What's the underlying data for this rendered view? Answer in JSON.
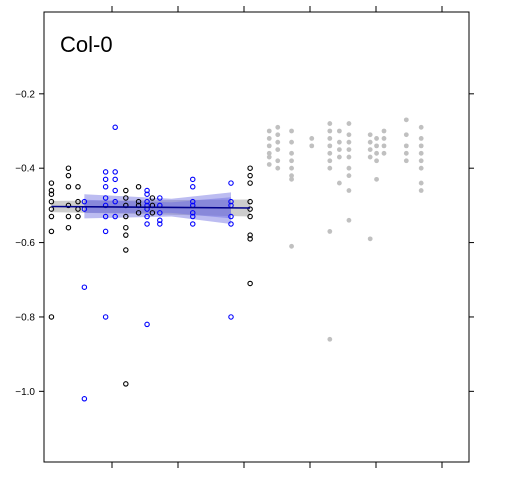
{
  "chart_data": {
    "type": "scatter",
    "title": "Col-0",
    "xlabel": "",
    "ylabel": "",
    "ylim": [
      -1.19,
      0.02
    ],
    "y_ticks": [
      -1.0,
      -0.8,
      -0.6,
      -0.4,
      -0.2
    ],
    "y_tick_labels": [
      "−1.0",
      "−0.8",
      "−0.6",
      "−0.4",
      "−0.2"
    ],
    "x_tick_count": 6,
    "grid": false,
    "colors": {
      "black_group": "#000000",
      "blue_group": "#0000ff",
      "gray_group": "#c0c0c0",
      "fit_line": "#00008b",
      "band": "#6a6adf",
      "gray_band": "#c8c8c8"
    },
    "series": [
      {
        "group": "black",
        "points": [
          {
            "x": 0.07,
            "y": -0.44
          },
          {
            "x": 0.07,
            "y": -0.46
          },
          {
            "x": 0.07,
            "y": -0.47
          },
          {
            "x": 0.07,
            "y": -0.49
          },
          {
            "x": 0.07,
            "y": -0.51
          },
          {
            "x": 0.07,
            "y": -0.53
          },
          {
            "x": 0.07,
            "y": -0.57
          },
          {
            "x": 0.07,
            "y": -0.8
          },
          {
            "x": 0.23,
            "y": -0.4
          },
          {
            "x": 0.23,
            "y": -0.42
          },
          {
            "x": 0.23,
            "y": -0.45
          },
          {
            "x": 0.23,
            "y": -0.5
          },
          {
            "x": 0.23,
            "y": -0.53
          },
          {
            "x": 0.23,
            "y": -0.56
          },
          {
            "x": 0.32,
            "y": -0.45
          },
          {
            "x": 0.32,
            "y": -0.49
          },
          {
            "x": 0.32,
            "y": -0.51
          },
          {
            "x": 0.32,
            "y": -0.53
          },
          {
            "x": 0.77,
            "y": -0.46
          },
          {
            "x": 0.77,
            "y": -0.48
          },
          {
            "x": 0.77,
            "y": -0.5
          },
          {
            "x": 0.77,
            "y": -0.53
          },
          {
            "x": 0.77,
            "y": -0.56
          },
          {
            "x": 0.77,
            "y": -0.58
          },
          {
            "x": 0.77,
            "y": -0.62
          },
          {
            "x": 0.77,
            "y": -0.98
          },
          {
            "x": 0.89,
            "y": -0.45
          },
          {
            "x": 0.89,
            "y": -0.49
          },
          {
            "x": 0.89,
            "y": -0.5
          },
          {
            "x": 0.89,
            "y": -0.52
          },
          {
            "x": 1.02,
            "y": -0.48
          },
          {
            "x": 1.02,
            "y": -0.5
          },
          {
            "x": 1.02,
            "y": -0.52
          },
          {
            "x": 1.94,
            "y": -0.4
          },
          {
            "x": 1.94,
            "y": -0.42
          },
          {
            "x": 1.94,
            "y": -0.44
          },
          {
            "x": 1.94,
            "y": -0.49
          },
          {
            "x": 1.94,
            "y": -0.51
          },
          {
            "x": 1.94,
            "y": -0.53
          },
          {
            "x": 1.94,
            "y": -0.58
          },
          {
            "x": 1.94,
            "y": -0.59
          },
          {
            "x": 1.94,
            "y": -0.71
          }
        ]
      },
      {
        "group": "blue",
        "points": [
          {
            "x": 0.38,
            "y": -0.72
          },
          {
            "x": 0.38,
            "y": -1.02
          },
          {
            "x": 0.38,
            "y": -0.49
          },
          {
            "x": 0.38,
            "y": -0.51
          },
          {
            "x": 0.58,
            "y": -0.41
          },
          {
            "x": 0.58,
            "y": -0.43
          },
          {
            "x": 0.58,
            "y": -0.45
          },
          {
            "x": 0.58,
            "y": -0.48
          },
          {
            "x": 0.58,
            "y": -0.5
          },
          {
            "x": 0.58,
            "y": -0.53
          },
          {
            "x": 0.58,
            "y": -0.57
          },
          {
            "x": 0.58,
            "y": -0.8
          },
          {
            "x": 0.67,
            "y": -0.29
          },
          {
            "x": 0.67,
            "y": -0.41
          },
          {
            "x": 0.67,
            "y": -0.43
          },
          {
            "x": 0.67,
            "y": -0.46
          },
          {
            "x": 0.67,
            "y": -0.49
          },
          {
            "x": 0.67,
            "y": -0.53
          },
          {
            "x": 0.97,
            "y": -0.46
          },
          {
            "x": 0.97,
            "y": -0.47
          },
          {
            "x": 0.97,
            "y": -0.49
          },
          {
            "x": 0.97,
            "y": -0.5
          },
          {
            "x": 0.97,
            "y": -0.51
          },
          {
            "x": 0.97,
            "y": -0.53
          },
          {
            "x": 0.97,
            "y": -0.55
          },
          {
            "x": 0.97,
            "y": -0.82
          },
          {
            "x": 1.09,
            "y": -0.48
          },
          {
            "x": 1.09,
            "y": -0.5
          },
          {
            "x": 1.09,
            "y": -0.52
          },
          {
            "x": 1.09,
            "y": -0.54
          },
          {
            "x": 1.09,
            "y": -0.55
          },
          {
            "x": 1.4,
            "y": -0.43
          },
          {
            "x": 1.4,
            "y": -0.45
          },
          {
            "x": 1.4,
            "y": -0.49
          },
          {
            "x": 1.4,
            "y": -0.5
          },
          {
            "x": 1.4,
            "y": -0.52
          },
          {
            "x": 1.4,
            "y": -0.53
          },
          {
            "x": 1.4,
            "y": -0.55
          },
          {
            "x": 1.76,
            "y": -0.44
          },
          {
            "x": 1.76,
            "y": -0.49
          },
          {
            "x": 1.76,
            "y": -0.5
          },
          {
            "x": 1.76,
            "y": -0.53
          },
          {
            "x": 1.76,
            "y": -0.55
          },
          {
            "x": 1.76,
            "y": -0.8
          }
        ]
      },
      {
        "group": "gray",
        "points": [
          {
            "x": 2.12,
            "y": -0.3
          },
          {
            "x": 2.12,
            "y": -0.32
          },
          {
            "x": 2.12,
            "y": -0.34
          },
          {
            "x": 2.12,
            "y": -0.36
          },
          {
            "x": 2.12,
            "y": -0.37
          },
          {
            "x": 2.12,
            "y": -0.39
          },
          {
            "x": 2.2,
            "y": -0.29
          },
          {
            "x": 2.2,
            "y": -0.31
          },
          {
            "x": 2.2,
            "y": -0.33
          },
          {
            "x": 2.2,
            "y": -0.35
          },
          {
            "x": 2.2,
            "y": -0.38
          },
          {
            "x": 2.2,
            "y": -0.4
          },
          {
            "x": 2.33,
            "y": -0.3
          },
          {
            "x": 2.33,
            "y": -0.33
          },
          {
            "x": 2.33,
            "y": -0.36
          },
          {
            "x": 2.33,
            "y": -0.38
          },
          {
            "x": 2.33,
            "y": -0.4
          },
          {
            "x": 2.33,
            "y": -0.42
          },
          {
            "x": 2.33,
            "y": -0.43
          },
          {
            "x": 2.33,
            "y": -0.61
          },
          {
            "x": 2.52,
            "y": -0.32
          },
          {
            "x": 2.52,
            "y": -0.34
          },
          {
            "x": 2.69,
            "y": -0.28
          },
          {
            "x": 2.69,
            "y": -0.3
          },
          {
            "x": 2.69,
            "y": -0.32
          },
          {
            "x": 2.69,
            "y": -0.34
          },
          {
            "x": 2.69,
            "y": -0.36
          },
          {
            "x": 2.69,
            "y": -0.38
          },
          {
            "x": 2.69,
            "y": -0.4
          },
          {
            "x": 2.69,
            "y": -0.57
          },
          {
            "x": 2.69,
            "y": -0.86
          },
          {
            "x": 2.78,
            "y": -0.3
          },
          {
            "x": 2.78,
            "y": -0.33
          },
          {
            "x": 2.78,
            "y": -0.35
          },
          {
            "x": 2.78,
            "y": -0.37
          },
          {
            "x": 2.78,
            "y": -0.44
          },
          {
            "x": 2.87,
            "y": -0.28
          },
          {
            "x": 2.87,
            "y": -0.31
          },
          {
            "x": 2.87,
            "y": -0.33
          },
          {
            "x": 2.87,
            "y": -0.35
          },
          {
            "x": 2.87,
            "y": -0.37
          },
          {
            "x": 2.87,
            "y": -0.4
          },
          {
            "x": 2.87,
            "y": -0.42
          },
          {
            "x": 2.87,
            "y": -0.46
          },
          {
            "x": 2.87,
            "y": -0.54
          },
          {
            "x": 3.07,
            "y": -0.31
          },
          {
            "x": 3.07,
            "y": -0.33
          },
          {
            "x": 3.07,
            "y": -0.35
          },
          {
            "x": 3.07,
            "y": -0.37
          },
          {
            "x": 3.07,
            "y": -0.59
          },
          {
            "x": 3.13,
            "y": -0.32
          },
          {
            "x": 3.13,
            "y": -0.34
          },
          {
            "x": 3.13,
            "y": -0.36
          },
          {
            "x": 3.13,
            "y": -0.38
          },
          {
            "x": 3.13,
            "y": -0.43
          },
          {
            "x": 3.2,
            "y": -0.3
          },
          {
            "x": 3.2,
            "y": -0.32
          },
          {
            "x": 3.2,
            "y": -0.34
          },
          {
            "x": 3.2,
            "y": -0.36
          },
          {
            "x": 3.41,
            "y": -0.27
          },
          {
            "x": 3.41,
            "y": -0.31
          },
          {
            "x": 3.41,
            "y": -0.34
          },
          {
            "x": 3.41,
            "y": -0.36
          },
          {
            "x": 3.41,
            "y": -0.38
          },
          {
            "x": 3.55,
            "y": -0.29
          },
          {
            "x": 3.55,
            "y": -0.32
          },
          {
            "x": 3.55,
            "y": -0.34
          },
          {
            "x": 3.55,
            "y": -0.36
          },
          {
            "x": 3.55,
            "y": -0.38
          },
          {
            "x": 3.55,
            "y": -0.4
          },
          {
            "x": 3.55,
            "y": -0.44
          },
          {
            "x": 3.55,
            "y": -0.46
          }
        ]
      }
    ],
    "fit": {
      "x": [
        0.07,
        1.94
      ],
      "y": [
        -0.503,
        -0.507
      ]
    },
    "bands": [
      {
        "group": "gray",
        "x": [
          0.07,
          1.94
        ],
        "upper": [
          -0.488,
          -0.484
        ],
        "lower": [
          -0.518,
          -0.53
        ]
      },
      {
        "group": "blue",
        "x": [
          0.38,
          1.2,
          1.76
        ],
        "upper": [
          -0.47,
          -0.482,
          -0.465
        ],
        "lower": [
          -0.535,
          -0.53,
          -0.55
        ]
      },
      {
        "group": "blue",
        "x": [
          0.38,
          1.2,
          1.76
        ],
        "upper": [
          -0.485,
          -0.492,
          -0.478
        ],
        "lower": [
          -0.52,
          -0.52,
          -0.535
        ]
      }
    ]
  }
}
